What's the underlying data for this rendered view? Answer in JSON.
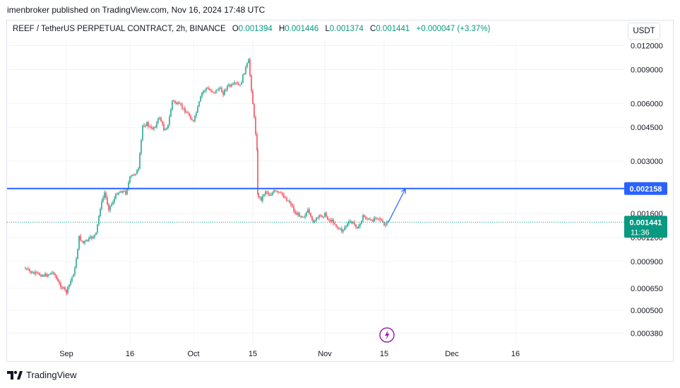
{
  "publish_line": "imenbroker published on TradingView.com, Nov 16, 2024 17:48 UTC",
  "legend": {
    "symbol": "REEF / TetherUS PERPETUAL CONTRACT, 2h, BINANCE",
    "open_label": "O",
    "open": "0.001394",
    "high_label": "H",
    "high": "0.001446",
    "low_label": "L",
    "low": "0.001374",
    "close_label": "C",
    "close": "0.001441",
    "change": "+0.000047 (+3.37%)"
  },
  "currency_button": "USDT",
  "footer": {
    "brand": "TradingView",
    "icon": "tradingview-logo-icon"
  },
  "colors": {
    "up": "#089981",
    "down": "#f23645",
    "level": "#2962ff",
    "price_tag": "#089981",
    "grid": "#f0f3fa"
  },
  "chart_data": {
    "type": "candlestick",
    "title": "REEF / TetherUS PERPETUAL CONTRACT, 2h, BINANCE",
    "yscale": "log",
    "ylim": [
      0.00033,
      0.0127
    ],
    "y_ticks": [
      "0.012000",
      "0.009000",
      "0.006000",
      "0.004500",
      "0.003000",
      "0.001600",
      "0.001200",
      "0.000900",
      "0.000650",
      "0.000500",
      "0.000380"
    ],
    "x_ticks": [
      "Sep",
      "16",
      "Oct",
      "15",
      "Nov",
      "15",
      "Dec",
      "16"
    ],
    "x_tick_dates": [
      "2024-09-01",
      "2024-09-16",
      "2024-10-01",
      "2024-10-15",
      "2024-11-01",
      "2024-11-15",
      "2024-12-01",
      "2024-12-16"
    ],
    "grid": true,
    "series": [
      {
        "name": "REEF/USDT",
        "points": [
          {
            "date": "2024-08-22",
            "price": 0.00083
          },
          {
            "date": "2024-08-24",
            "price": 0.00078
          },
          {
            "date": "2024-08-27",
            "price": 0.00076
          },
          {
            "date": "2024-08-29",
            "price": 0.00079
          },
          {
            "date": "2024-08-30",
            "price": 0.0007
          },
          {
            "date": "2024-09-01",
            "price": 0.00062
          },
          {
            "date": "2024-09-02",
            "price": 0.00071
          },
          {
            "date": "2024-09-03",
            "price": 0.00082
          },
          {
            "date": "2024-09-04",
            "price": 0.0012
          },
          {
            "date": "2024-09-05",
            "price": 0.00112
          },
          {
            "date": "2024-09-07",
            "price": 0.0012
          },
          {
            "date": "2024-09-08",
            "price": 0.00125
          },
          {
            "date": "2024-09-09",
            "price": 0.00172
          },
          {
            "date": "2024-09-10",
            "price": 0.00205
          },
          {
            "date": "2024-09-11",
            "price": 0.0017
          },
          {
            "date": "2024-09-12",
            "price": 0.00185
          },
          {
            "date": "2024-09-13",
            "price": 0.00205
          },
          {
            "date": "2024-09-14",
            "price": 0.0021
          },
          {
            "date": "2024-09-15",
            "price": 0.00205
          },
          {
            "date": "2024-09-16",
            "price": 0.00245
          },
          {
            "date": "2024-09-18",
            "price": 0.0027
          },
          {
            "date": "2024-09-19",
            "price": 0.0046
          },
          {
            "date": "2024-09-20",
            "price": 0.0047
          },
          {
            "date": "2024-09-21",
            "price": 0.0044
          },
          {
            "date": "2024-09-22",
            "price": 0.0046
          },
          {
            "date": "2024-09-23",
            "price": 0.0051
          },
          {
            "date": "2024-09-24",
            "price": 0.0044
          },
          {
            "date": "2024-09-25",
            "price": 0.0046
          },
          {
            "date": "2024-09-26",
            "price": 0.0062
          },
          {
            "date": "2024-09-28",
            "price": 0.0058
          },
          {
            "date": "2024-09-29",
            "price": 0.0055
          },
          {
            "date": "2024-09-30",
            "price": 0.0052
          },
          {
            "date": "2024-10-01",
            "price": 0.0048
          },
          {
            "date": "2024-10-02",
            "price": 0.0057
          },
          {
            "date": "2024-10-03",
            "price": 0.0068
          },
          {
            "date": "2024-10-04",
            "price": 0.0072
          },
          {
            "date": "2024-10-05",
            "price": 0.007
          },
          {
            "date": "2024-10-06",
            "price": 0.0069
          },
          {
            "date": "2024-10-07",
            "price": 0.0072
          },
          {
            "date": "2024-10-08",
            "price": 0.0068
          },
          {
            "date": "2024-10-09",
            "price": 0.0074
          },
          {
            "date": "2024-10-10",
            "price": 0.0074
          },
          {
            "date": "2024-10-11",
            "price": 0.0076
          },
          {
            "date": "2024-10-12",
            "price": 0.0074
          },
          {
            "date": "2024-10-13",
            "price": 0.0088
          },
          {
            "date": "2024-10-14",
            "price": 0.01
          },
          {
            "date": "2024-10-15",
            "price": 0.006
          },
          {
            "date": "2024-10-16",
            "price": 0.0035
          },
          {
            "date": "2024-10-16",
            "price": 0.002
          },
          {
            "date": "2024-10-17",
            "price": 0.0019
          },
          {
            "date": "2024-10-18",
            "price": 0.0021
          },
          {
            "date": "2024-10-19",
            "price": 0.002
          },
          {
            "date": "2024-10-20",
            "price": 0.00208
          },
          {
            "date": "2024-10-21",
            "price": 0.00205
          },
          {
            "date": "2024-10-22",
            "price": 0.002
          },
          {
            "date": "2024-10-24",
            "price": 0.0018
          },
          {
            "date": "2024-10-25",
            "price": 0.0016
          },
          {
            "date": "2024-10-27",
            "price": 0.00155
          },
          {
            "date": "2024-10-28",
            "price": 0.00165
          },
          {
            "date": "2024-10-29",
            "price": 0.00145
          },
          {
            "date": "2024-10-31",
            "price": 0.00155
          },
          {
            "date": "2024-11-01",
            "price": 0.00158
          },
          {
            "date": "2024-11-02",
            "price": 0.00148
          },
          {
            "date": "2024-11-03",
            "price": 0.00145
          },
          {
            "date": "2024-11-04",
            "price": 0.00135
          },
          {
            "date": "2024-11-05",
            "price": 0.0013
          },
          {
            "date": "2024-11-06",
            "price": 0.00138
          },
          {
            "date": "2024-11-07",
            "price": 0.00145
          },
          {
            "date": "2024-11-08",
            "price": 0.0014
          },
          {
            "date": "2024-11-09",
            "price": 0.00135
          },
          {
            "date": "2024-11-10",
            "price": 0.00155
          },
          {
            "date": "2024-11-11",
            "price": 0.0015
          },
          {
            "date": "2024-11-12",
            "price": 0.00145
          },
          {
            "date": "2024-11-13",
            "price": 0.00155
          },
          {
            "date": "2024-11-14",
            "price": 0.0015
          },
          {
            "date": "2024-11-15",
            "price": 0.00138
          },
          {
            "date": "2024-11-16",
            "price": 0.001441
          }
        ]
      }
    ],
    "horizontal_level": {
      "price": 0.002158,
      "label": "0.002158"
    },
    "last_price_tag": {
      "price": 0.001441,
      "label": "0.001441",
      "countdown": "11:36"
    },
    "projection_arrow": {
      "from": {
        "date": "2024-11-16",
        "price": 0.00144
      },
      "to": {
        "date": "2024-11-20",
        "price": 0.00215
      }
    },
    "event_marker": {
      "date": "2024-11-16",
      "icon": "lightning-icon"
    }
  }
}
